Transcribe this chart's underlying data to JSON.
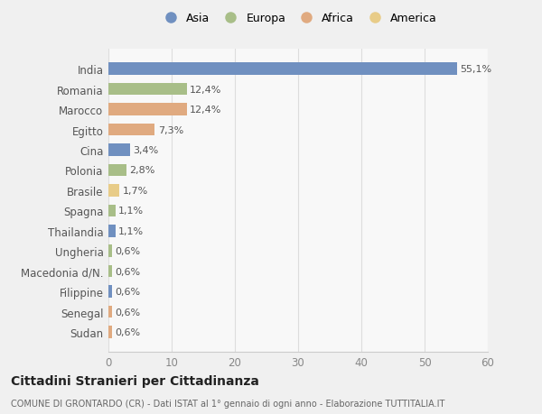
{
  "categories": [
    "India",
    "Romania",
    "Marocco",
    "Egitto",
    "Cina",
    "Polonia",
    "Brasile",
    "Spagna",
    "Thailandia",
    "Ungheria",
    "Macedonia d/N.",
    "Filippine",
    "Senegal",
    "Sudan"
  ],
  "values": [
    55.1,
    12.4,
    12.4,
    7.3,
    3.4,
    2.8,
    1.7,
    1.1,
    1.1,
    0.6,
    0.6,
    0.6,
    0.6,
    0.6
  ],
  "labels": [
    "55,1%",
    "12,4%",
    "12,4%",
    "7,3%",
    "3,4%",
    "2,8%",
    "1,7%",
    "1,1%",
    "1,1%",
    "0,6%",
    "0,6%",
    "0,6%",
    "0,6%",
    "0,6%"
  ],
  "colors": [
    "#7090c0",
    "#a8be88",
    "#e0aa80",
    "#e0aa80",
    "#7090c0",
    "#a8be88",
    "#e8cc88",
    "#a8be88",
    "#7090c0",
    "#a8be88",
    "#a8be88",
    "#7090c0",
    "#e0aa80",
    "#e0aa80"
  ],
  "legend_labels": [
    "Asia",
    "Europa",
    "Africa",
    "America"
  ],
  "legend_colors": [
    "#7090c0",
    "#a8be88",
    "#e0aa80",
    "#e8cc88"
  ],
  "title": "Cittadini Stranieri per Cittadinanza",
  "subtitle": "COMUNE DI GRONTARDO (CR) - Dati ISTAT al 1° gennaio di ogni anno - Elaborazione TUTTITALIA.IT",
  "xlim": [
    0,
    60
  ],
  "xticks": [
    0,
    10,
    20,
    30,
    40,
    50,
    60
  ],
  "background_color": "#f0f0f0",
  "bar_background": "#f8f8f8"
}
